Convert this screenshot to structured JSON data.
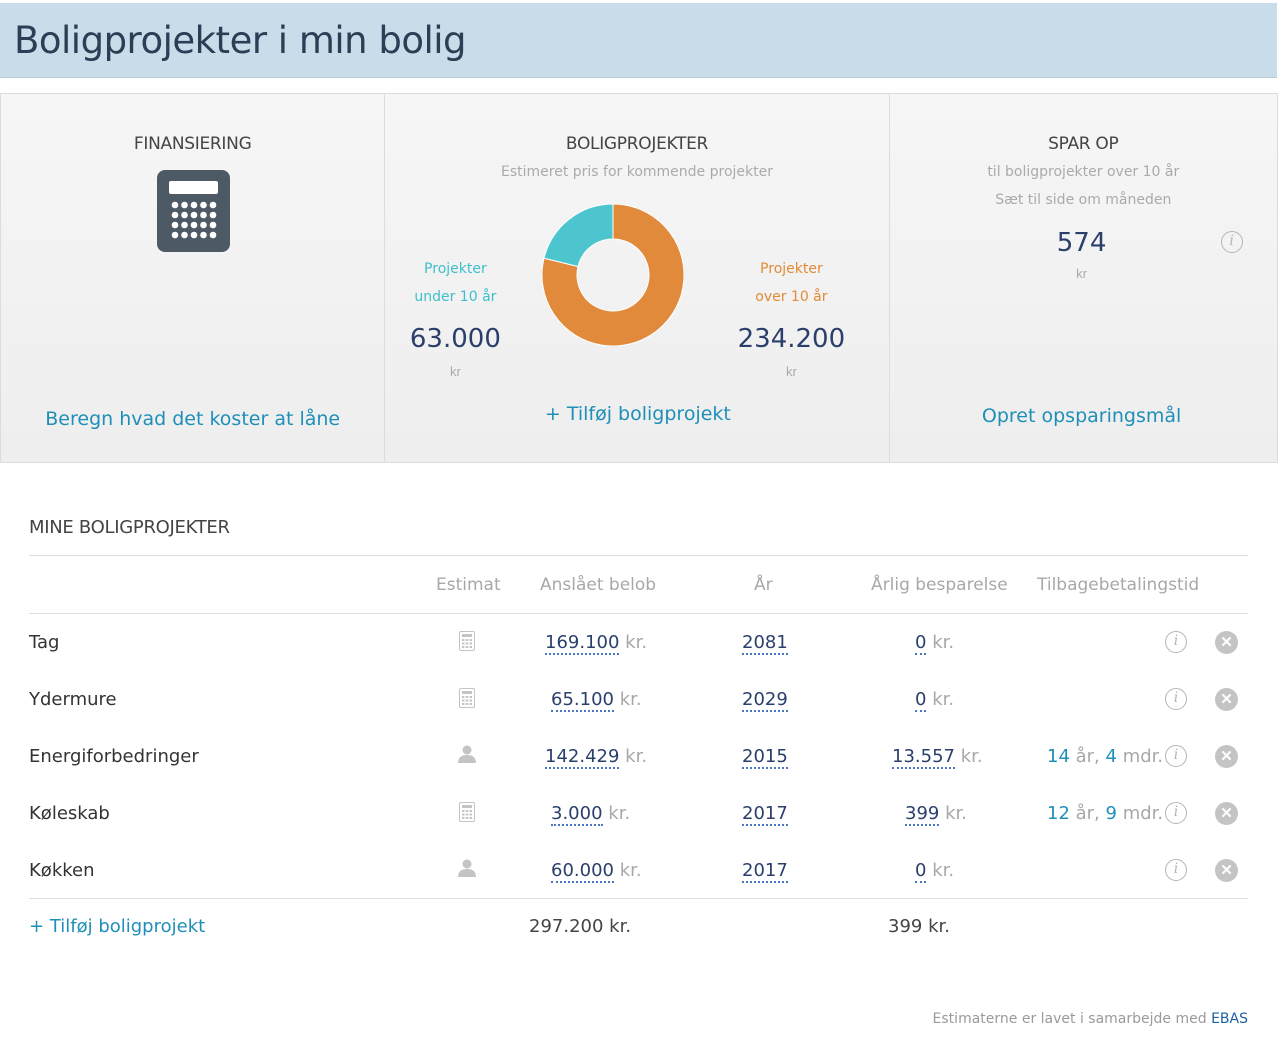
{
  "header": {
    "title": "Boligprojekter i min bolig"
  },
  "financing": {
    "title": "FINANSIERING",
    "icon": "calculator-icon",
    "link": "Beregn hvad det koster at låne"
  },
  "projects_card": {
    "title": "BOLIGPROJEKTER",
    "subtitle": "Estimeret pris for kommende projekter",
    "left_label_1": "Projekter",
    "left_label_2": "under 10 år",
    "left_value": "63.000",
    "left_unit": "kr",
    "right_label_1": "Projekter",
    "right_label_2": "over 10 år",
    "right_value": "234.200",
    "right_unit": "kr",
    "donut": {
      "under_10": 63000,
      "over_10": 234200,
      "colors": {
        "under_10": "#4cc5cf",
        "over_10": "#e28a3c"
      }
    },
    "add_link": "+ Tilføj boligprojekt"
  },
  "save_card": {
    "title": "SPAR OP",
    "subtitle_1": "til boligprojekter over 10 år",
    "subtitle_2": "Sæt til side om måneden",
    "value": "574",
    "unit": "kr",
    "link": "Opret opsparingsmål"
  },
  "my_projects": {
    "title": "MINE BOLIGPROJEKTER",
    "columns": [
      "Estimat",
      "Anslået belob",
      "År",
      "Årlig besparelse",
      "Tilbagebetalingstid"
    ],
    "rows": [
      {
        "name": "Tag",
        "estimate_icon": "calculator-icon",
        "amount": "169.100",
        "amount_unit": "kr.",
        "year": "2081",
        "saving": "0",
        "saving_unit": "kr.",
        "payback_years": "",
        "payback_years_unit": "",
        "payback_months": "",
        "payback_months_unit": ""
      },
      {
        "name": "Ydermure",
        "estimate_icon": "calculator-icon",
        "amount": "65.100",
        "amount_unit": "kr.",
        "year": "2029",
        "saving": "0",
        "saving_unit": "kr.",
        "payback_years": "",
        "payback_years_unit": "",
        "payback_months": "",
        "payback_months_unit": ""
      },
      {
        "name": "Energiforbedringer",
        "estimate_icon": "person-icon",
        "amount": "142.429",
        "amount_unit": "kr.",
        "year": "2015",
        "saving": "13.557",
        "saving_unit": "kr.",
        "payback_years": "14",
        "payback_years_unit": " år,",
        "payback_months": "4",
        "payback_months_unit": " mdr."
      },
      {
        "name": "Køleskab",
        "estimate_icon": "calculator-icon",
        "amount": "3.000",
        "amount_unit": "kr.",
        "year": "2017",
        "saving": "399",
        "saving_unit": "kr.",
        "payback_years": "12",
        "payback_years_unit": " år,",
        "payback_months": "9",
        "payback_months_unit": " mdr."
      },
      {
        "name": "Køkken",
        "estimate_icon": "person-icon",
        "amount": "60.000",
        "amount_unit": "kr.",
        "year": "2017",
        "saving": "0",
        "saving_unit": "kr.",
        "payback_years": "",
        "payback_years_unit": "",
        "payback_months": "",
        "payback_months_unit": ""
      }
    ],
    "add_link": "+ Tilføj boligprojekt",
    "total_amount": "297.200 kr.",
    "total_saving": "399 kr."
  },
  "footnote": {
    "text": "Estimaterne er lavet i samarbejde med ",
    "brand": "EBAS"
  }
}
